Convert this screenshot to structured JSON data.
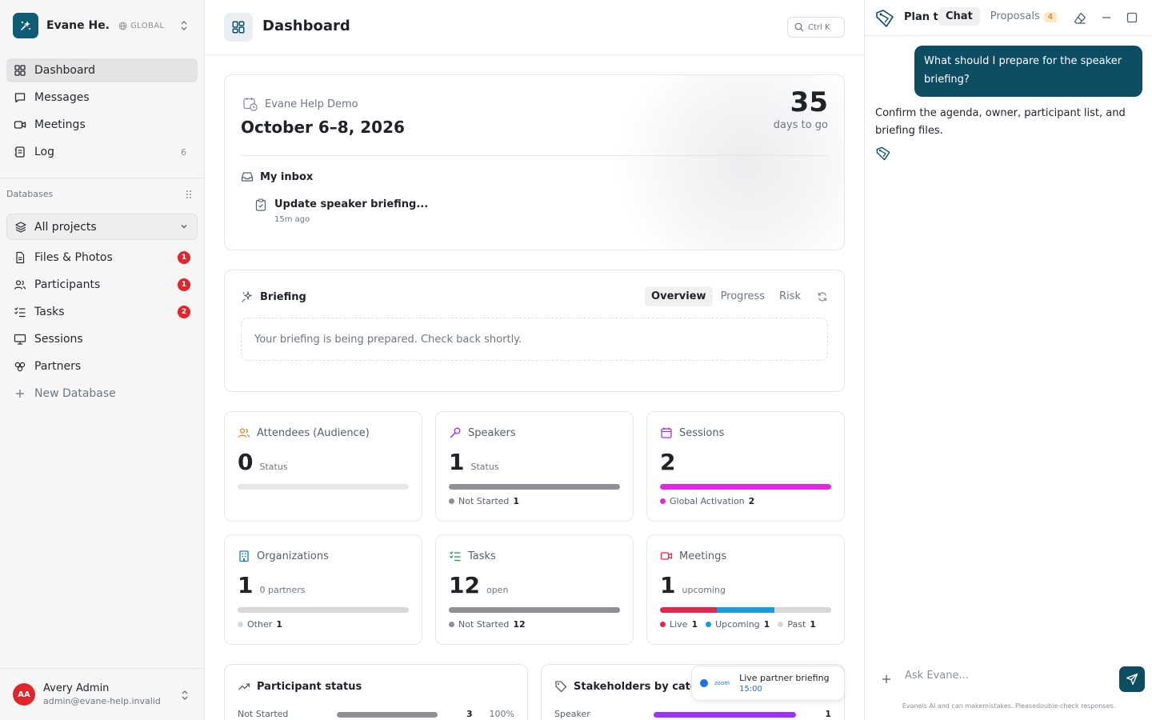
{
  "workspace": {
    "name": "Evane He...",
    "scope": "GLOBAL"
  },
  "nav": {
    "items": [
      {
        "label": "Dashboard"
      },
      {
        "label": "Messages"
      },
      {
        "label": "Meetings"
      },
      {
        "label": "Log",
        "count": "6"
      }
    ]
  },
  "databases": {
    "heading": "Databases",
    "all_projects": "All projects",
    "items": [
      {
        "label": "Files & Photos",
        "badge": "1"
      },
      {
        "label": "Participants",
        "badge": "1"
      },
      {
        "label": "Tasks",
        "badge": "2"
      },
      {
        "label": "Sessions"
      },
      {
        "label": "Partners"
      }
    ],
    "new_label": "New Database"
  },
  "user": {
    "initials": "AA",
    "name": "Avery Admin",
    "email": "admin@evane-help.invalid"
  },
  "header": {
    "title": "Dashboard",
    "shortcut": "Ctrl K"
  },
  "event": {
    "name": "Evane Help Demo",
    "dates": "October 6–8, 2026",
    "days_num": "35",
    "days_label": "days to go",
    "inbox_heading": "My inbox",
    "inbox_item_title": "Update speaker briefing...",
    "inbox_item_time": "15m ago"
  },
  "briefing": {
    "heading": "Briefing",
    "tabs": [
      "Overview",
      "Progress",
      "Risk"
    ],
    "active_tab": "Overview",
    "message": "Your briefing is being prepared. Check back shortly."
  },
  "stats": [
    {
      "title": "Attendees (Audience)",
      "value": "0",
      "sub": "Status",
      "segments": [],
      "legend": []
    },
    {
      "title": "Speakers",
      "value": "1",
      "sub": "Status",
      "segments": [
        {
          "color": "#8f8f95",
          "share": 1
        }
      ],
      "legend": [
        {
          "label": "Not Started",
          "count": "1",
          "color": "#8f8f95"
        }
      ]
    },
    {
      "title": "Sessions",
      "value": "2",
      "sub": "",
      "segments": [
        {
          "color": "#e026e6",
          "share": 1
        }
      ],
      "legend": [
        {
          "label": "Global Activation",
          "count": "2",
          "color": "#e026e6"
        }
      ]
    },
    {
      "title": "Organizations",
      "value": "1",
      "sub": "0 partners",
      "segments": [
        {
          "color": "#d7d7d9",
          "share": 1
        }
      ],
      "legend": [
        {
          "label": "Other",
          "count": "1",
          "color": "#d7d7d9"
        }
      ]
    },
    {
      "title": "Tasks",
      "value": "12",
      "sub": "open",
      "segments": [
        {
          "color": "#8f8f95",
          "share": 1
        }
      ],
      "legend": [
        {
          "label": "Not Started",
          "count": "12",
          "color": "#8f8f95"
        }
      ]
    },
    {
      "title": "Meetings",
      "value": "1",
      "sub": "upcoming",
      "segments": [
        {
          "color": "#e8264d",
          "share": 0.333
        },
        {
          "color": "#1a9be0",
          "share": 0.337
        },
        {
          "color": "#d7d7d9",
          "share": 0.33
        }
      ],
      "legend": [
        {
          "label": "Live",
          "count": "1",
          "color": "#e8264d"
        },
        {
          "label": "Upcoming",
          "count": "1",
          "color": "#1a9be0"
        },
        {
          "label": "Past",
          "count": "1",
          "color": "#d7d7d9"
        }
      ]
    }
  ],
  "participant_status": {
    "heading": "Participant status",
    "row": {
      "label": "Not Started",
      "value": "3",
      "percent": "100%",
      "share": 1,
      "color": "#8f8f95"
    }
  },
  "stakeholders": {
    "heading": "Stakeholders by categ",
    "row": {
      "label": "Speaker",
      "value": "1",
      "share": 1,
      "color": "#9b35f0"
    }
  },
  "toast": {
    "brand": "zoom",
    "title": "Live partner briefing",
    "time": "15:00"
  },
  "chat": {
    "title": "Plan th",
    "tabs": [
      "Chat",
      "Proposals"
    ],
    "active_tab": "Chat",
    "proposals_count": "4",
    "user_message": "What should I prepare for the speaker briefing?",
    "assistant_message": "Confirm the agenda, owner, participant list, and briefing files.",
    "input_placeholder": "Ask Evane...",
    "disclaimer": "Evaneis AI and can makemistakes. Pleasedouble-check responses."
  }
}
